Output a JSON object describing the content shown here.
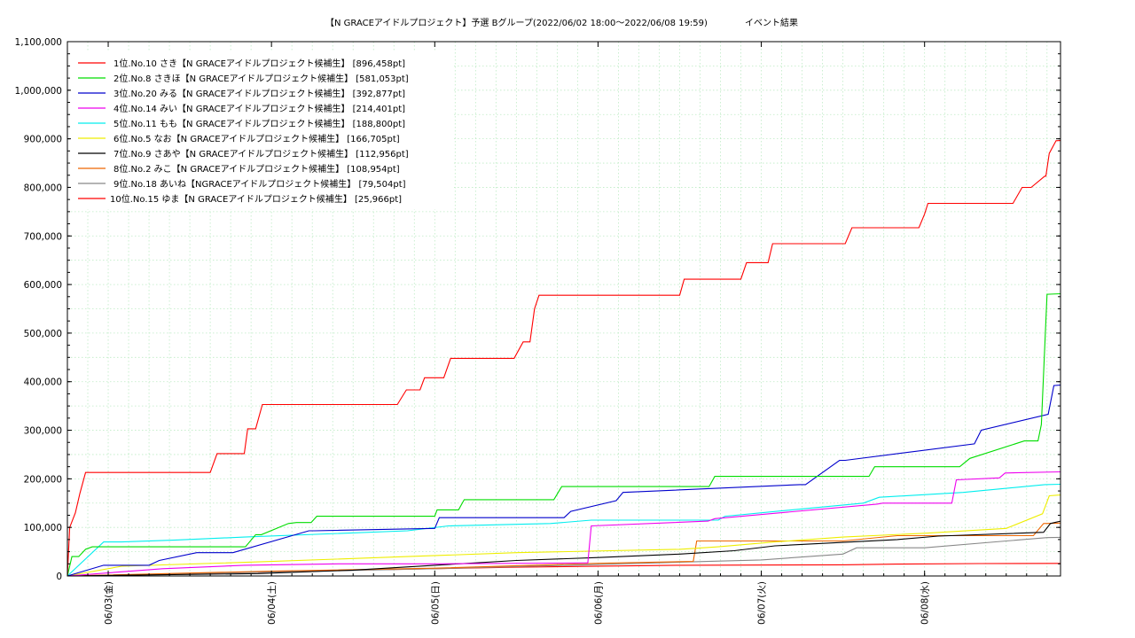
{
  "chart_data": {
    "type": "line",
    "title": "【N GRACEアイドルプロジェクト】予選 Bグループ(2022/06/02 18:00～2022/06/08 19:59)",
    "subtitle": "イベント結果",
    "ylim": [
      0,
      1100000
    ],
    "y_ticks": [
      "0",
      "100,000",
      "200,000",
      "300,000",
      "400,000",
      "500,000",
      "600,000",
      "700,000",
      "800,000",
      "900,000",
      "1,000,000",
      "1,100,000"
    ],
    "x_range": [
      "2022-06-02 18:00",
      "2022-06-08 19:59"
    ],
    "x_ticks": [
      {
        "label": "06/03(金)",
        "t": "2022-06-03 00:00"
      },
      {
        "label": "06/04(土)",
        "t": "2022-06-04 00:00"
      },
      {
        "label": "06/05(日)",
        "t": "2022-06-05 00:00"
      },
      {
        "label": "06/06(月)",
        "t": "2022-06-06 00:00"
      },
      {
        "label": "06/07(火)",
        "t": "2022-06-07 00:00"
      },
      {
        "label": "06/08(水)",
        "t": "2022-06-08 00:00"
      }
    ],
    "grid": true,
    "legend_position": "top-left",
    "series": [
      {
        "name": "1位.No.10 さき【N GRACEアイドルプロジェクト候補生】 [896,458pt]",
        "color": "#ff0000",
        "x": [
          "2022-06-02 18:00",
          "2022-06-02 18:20",
          "2022-06-02 19:10",
          "2022-06-02 19:50",
          "2022-06-02 20:40",
          "2022-06-03 15:00",
          "2022-06-03 16:00",
          "2022-06-03 20:00",
          "2022-06-03 20:30",
          "2022-06-03 21:40",
          "2022-06-03 22:40",
          "2022-06-04 18:30",
          "2022-06-04 19:50",
          "2022-06-04 21:50",
          "2022-06-04 22:30",
          "2022-06-05 01:20",
          "2022-06-05 02:20",
          "2022-06-05 11:40",
          "2022-06-05 13:00",
          "2022-06-05 14:00",
          "2022-06-05 14:40",
          "2022-06-05 15:20",
          "2022-06-06 12:00",
          "2022-06-06 12:40",
          "2022-06-06 21:00",
          "2022-06-06 21:50",
          "2022-06-07 01:00",
          "2022-06-07 01:40",
          "2022-06-07 12:20",
          "2022-06-07 13:20",
          "2022-06-07 23:10",
          "2022-06-08 00:00",
          "2022-06-08 00:30",
          "2022-06-08 13:00",
          "2022-06-08 14:20",
          "2022-06-08 15:40",
          "2022-06-08 17:40",
          "2022-06-08 17:50",
          "2022-06-08 18:20",
          "2022-06-08 19:20",
          "2022-06-08 19:59"
        ],
        "values": [
          0,
          100000,
          130000,
          170000,
          213000,
          213000,
          252000,
          252000,
          303000,
          303000,
          353000,
          353000,
          383000,
          383000,
          408000,
          408000,
          448000,
          448000,
          482000,
          482000,
          550000,
          578000,
          578000,
          611000,
          611000,
          645000,
          645000,
          684000,
          684000,
          717000,
          717000,
          745000,
          767000,
          767000,
          800000,
          800000,
          823000,
          823000,
          870000,
          896000,
          896458
        ]
      },
      {
        "name": "2位.No.8 さきほ【N GRACEアイドルプロジェクト候補生】 [581,053pt]",
        "color": "#00dd00",
        "x": [
          "2022-06-02 18:00",
          "2022-06-02 18:40",
          "2022-06-02 19:40",
          "2022-06-02 20:40",
          "2022-06-02 21:40",
          "2022-06-03 20:10",
          "2022-06-03 21:40",
          "2022-06-03 22:30",
          "2022-06-04 02:30",
          "2022-06-04 03:40",
          "2022-06-04 05:50",
          "2022-06-04 06:40",
          "2022-06-05 00:00",
          "2022-06-05 00:20",
          "2022-06-05 03:30",
          "2022-06-05 04:20",
          "2022-06-05 17:30",
          "2022-06-05 18:40",
          "2022-06-06 16:20",
          "2022-06-06 17:10",
          "2022-06-07 15:50",
          "2022-06-07 16:40",
          "2022-06-08 05:10",
          "2022-06-08 06:40",
          "2022-06-08 14:40",
          "2022-06-08 16:40",
          "2022-06-08 17:10",
          "2022-06-08 18:00",
          "2022-06-08 19:59"
        ],
        "values": [
          0,
          40000,
          40000,
          55000,
          60000,
          60000,
          85000,
          85000,
          108000,
          110000,
          110000,
          123000,
          123000,
          136000,
          136000,
          157000,
          157000,
          184000,
          184000,
          205000,
          205000,
          225000,
          225000,
          242000,
          278000,
          278000,
          312000,
          580000,
          581053
        ]
      },
      {
        "name": "3位.No.20 みる【N GRACEアイドルプロジェクト候補生】 [392,877pt]",
        "color": "#0000cc",
        "x": [
          "2022-06-02 18:00",
          "2022-06-02 23:20",
          "2022-06-03 06:00",
          "2022-06-03 07:30",
          "2022-06-03 13:00",
          "2022-06-03 18:20",
          "2022-06-04 05:30",
          "2022-06-04 06:20",
          "2022-06-05 00:00",
          "2022-06-05 00:40",
          "2022-06-05 19:00",
          "2022-06-05 20:00",
          "2022-06-06 02:40",
          "2022-06-06 03:40",
          "2022-06-07 05:40",
          "2022-06-07 06:30",
          "2022-06-07 11:30",
          "2022-06-07 12:20",
          "2022-06-08 07:20",
          "2022-06-08 08:20",
          "2022-06-08 18:10",
          "2022-06-08 19:00",
          "2022-06-08 19:59"
        ],
        "values": [
          0,
          22000,
          22000,
          32000,
          48000,
          48000,
          93000,
          93000,
          98000,
          120000,
          120000,
          133000,
          155000,
          172000,
          188000,
          188000,
          238000,
          238000,
          272000,
          300000,
          333000,
          392000,
          392877
        ]
      },
      {
        "name": "4位.No.14 みい【N GRACEアイドルプロジェクト候補生】 [214,401pt]",
        "color": "#ee00ee",
        "x": [
          "2022-06-02 18:00",
          "2022-06-03 08:00",
          "2022-06-03 20:00",
          "2022-06-04 10:00",
          "2022-06-05 01:00",
          "2022-06-05 22:30",
          "2022-06-05 23:00",
          "2022-06-06 16:10",
          "2022-06-06 17:10",
          "2022-06-07 17:00",
          "2022-06-07 17:50",
          "2022-06-08 04:00",
          "2022-06-08 04:40",
          "2022-06-08 11:00",
          "2022-06-08 11:50",
          "2022-06-08 19:59"
        ],
        "values": [
          0,
          15000,
          22000,
          25000,
          25000,
          27000,
          103000,
          113000,
          118000,
          148000,
          150000,
          150000,
          198000,
          202000,
          212000,
          214401
        ]
      },
      {
        "name": "5位.No.11 もも【N GRACEアイドルプロジェクト候補生】 [188,800pt]",
        "color": "#00eeee",
        "x": [
          "2022-06-02 18:00",
          "2022-06-02 23:20",
          "2022-06-03 02:00",
          "2022-06-03 10:00",
          "2022-06-03 20:00",
          "2022-06-04 20:00",
          "2022-06-05 02:00",
          "2022-06-05 17:00",
          "2022-06-05 23:00",
          "2022-06-06 17:40",
          "2022-06-06 18:40",
          "2022-06-07 15:00",
          "2022-06-07 17:20",
          "2022-06-08 05:40",
          "2022-06-08 17:40",
          "2022-06-08 19:59"
        ],
        "values": [
          0,
          70000,
          70000,
          74000,
          80000,
          93000,
          103000,
          108000,
          115000,
          115000,
          123000,
          150000,
          162000,
          172000,
          188000,
          188800
        ]
      },
      {
        "name": "6位.No.5 なお【N GRACEアイドルプロジェクト候補生】 [166,705pt]",
        "color": "#eeee00",
        "x": [
          "2022-06-02 18:00",
          "2022-06-03 02:00",
          "2022-06-04 00:00",
          "2022-06-04 20:00",
          "2022-06-05 12:00",
          "2022-06-06 12:00",
          "2022-06-06 17:40",
          "2022-06-07 02:00",
          "2022-06-07 12:00",
          "2022-06-08 00:00",
          "2022-06-08 12:00",
          "2022-06-08 17:20",
          "2022-06-08 18:20",
          "2022-06-08 19:59"
        ],
        "values": [
          0,
          20000,
          30000,
          40000,
          48000,
          55000,
          60000,
          70000,
          80000,
          88000,
          98000,
          128000,
          165000,
          166705
        ]
      },
      {
        "name": "7位.No.9 さあや【N GRACEアイドルプロジェクト候補生】 [112,956pt]",
        "color": "#000000",
        "x": [
          "2022-06-02 18:00",
          "2022-06-03 22:00",
          "2022-06-04 12:00",
          "2022-06-05 00:00",
          "2022-06-05 12:00",
          "2022-06-06 00:00",
          "2022-06-06 12:00",
          "2022-06-06 20:00",
          "2022-06-07 02:00",
          "2022-06-07 20:00",
          "2022-06-08 02:00",
          "2022-06-08 17:30",
          "2022-06-08 18:30",
          "2022-06-08 19:59"
        ],
        "values": [
          0,
          5000,
          12000,
          22000,
          32000,
          38000,
          45000,
          52000,
          62000,
          75000,
          82000,
          90000,
          108000,
          112956
        ]
      },
      {
        "name": "8位.No.2 みこ【N GRACEアイドルプロジェクト候補生】 [108,954pt]",
        "color": "#ee6600",
        "x": [
          "2022-06-02 18:00",
          "2022-06-04 00:00",
          "2022-06-05 00:00",
          "2022-06-06 00:00",
          "2022-06-06 14:00",
          "2022-06-06 14:30",
          "2022-06-07 12:00",
          "2022-06-07 20:00",
          "2022-06-08 16:00",
          "2022-06-08 17:30",
          "2022-06-08 19:59"
        ],
        "values": [
          0,
          10000,
          16000,
          26000,
          30000,
          72000,
          72000,
          83000,
          83000,
          108000,
          108954
        ]
      },
      {
        "name": "9位.No.18 あいね【NGRACEアイドルプロジェクト候補生】 [79,504pt]",
        "color": "#888888",
        "x": [
          "2022-06-02 18:00",
          "2022-06-04 00:00",
          "2022-06-05 00:00",
          "2022-06-05 20:00",
          "2022-06-06 16:00",
          "2022-06-07 00:00",
          "2022-06-07 12:00",
          "2022-06-07 14:00",
          "2022-06-08 00:00",
          "2022-06-08 12:00",
          "2022-06-08 18:00",
          "2022-06-08 19:59"
        ],
        "values": [
          0,
          8000,
          15000,
          22000,
          30000,
          33000,
          45000,
          58000,
          58000,
          72000,
          79000,
          79504
        ]
      },
      {
        "name": "10位.No.15 ゆま【N GRACEアイドルプロジェクト候補生】 [25,966pt]",
        "color": "#ff0000",
        "x": [
          "2022-06-02 18:00",
          "2022-06-03 12:00",
          "2022-06-04 12:00",
          "2022-06-05 12:00",
          "2022-06-06 12:00",
          "2022-06-07 12:00",
          "2022-06-07 20:00",
          "2022-06-08 08:00",
          "2022-06-08 19:59"
        ],
        "values": [
          0,
          5000,
          12000,
          18000,
          22000,
          23000,
          24500,
          25500,
          25966
        ]
      }
    ]
  }
}
